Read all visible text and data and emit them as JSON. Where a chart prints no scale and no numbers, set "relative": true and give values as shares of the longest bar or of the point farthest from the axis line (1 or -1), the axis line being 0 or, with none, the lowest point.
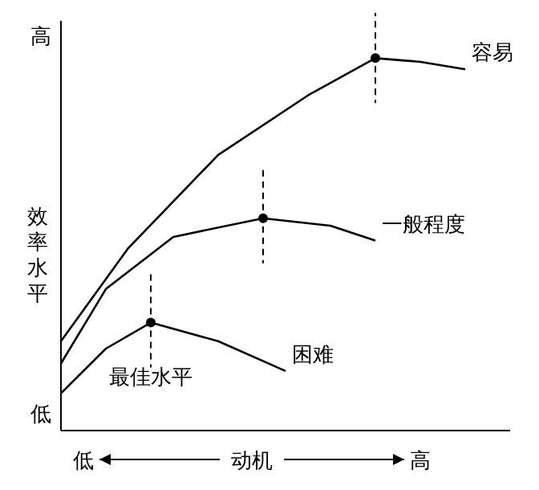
{
  "chart_data": {
    "type": "line",
    "relative": true,
    "ylabel": "效率水平",
    "xlabel": "动机",
    "categories": [
      null,
      "低",
      null,
      null,
      null,
      null,
      null,
      null,
      null,
      null,
      null,
      null,
      null,
      null,
      null,
      null,
      "高",
      null,
      null,
      null,
      null
    ],
    "grid": false,
    "marker": "none",
    "line_style": "solid",
    "annotations": [
      "高",
      "低",
      "最佳水平"
    ],
    "series": [
      {
        "name": "容易",
        "color": "#000000",
        "values": [
          0.24,
          null,
          null,
          0.49,
          null,
          null,
          null,
          0.74,
          null,
          null,
          null,
          0.9,
          null,
          null,
          1,
          null,
          0.99,
          null,
          0.97,
          null,
          null
        ]
      },
      {
        "name": "一般程度",
        "color": "#000000",
        "values": [
          0.18,
          null,
          0.38,
          null,
          null,
          0.52,
          null,
          null,
          null,
          0.57,
          null,
          null,
          0.55,
          null,
          0.51,
          null,
          null,
          null,
          null,
          null,
          null
        ]
      },
      {
        "name": "困难",
        "color": "#000000",
        "values": [
          0.1,
          null,
          0.22,
          null,
          0.29,
          null,
          null,
          0.24,
          null,
          null,
          0.16,
          null,
          null,
          null,
          null,
          null,
          null,
          null,
          null,
          null,
          null
        ]
      },
      {
        "type": "scatter",
        "marker": "circle",
        "color": "#000000",
        "values": [
          null,
          null,
          null,
          null,
          0.29,
          null,
          null,
          null,
          null,
          0.57,
          null,
          null,
          null,
          null,
          1,
          null,
          null,
          null,
          null,
          null,
          null
        ]
      }
    ]
  }
}
